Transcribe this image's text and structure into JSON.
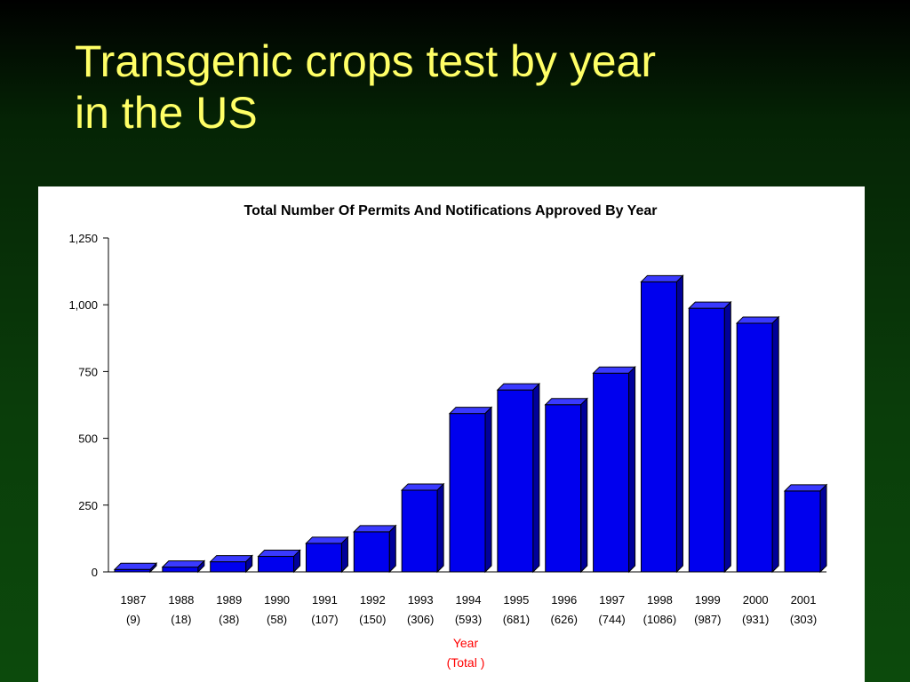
{
  "slide": {
    "title_line1": "Transgenic crops test by year",
    "title_line2": "in the US"
  },
  "colors": {
    "background": "#0a3d0a",
    "title": "#ffff66",
    "bar": "#0000ee",
    "axis_label": "#ff0000"
  },
  "chart_data": {
    "type": "bar",
    "title": "Total Number Of Permits And Notifications Approved By Year",
    "xlabel": "Year",
    "xlabel_sub": "(Total )",
    "ylabel": "",
    "ylim": [
      0,
      1250
    ],
    "yticks": [
      0,
      250,
      500,
      750,
      1000,
      1250
    ],
    "ytick_labels": [
      "0",
      "250",
      "500",
      "750",
      "1,000",
      "1,250"
    ],
    "grid": false,
    "bar_style": "3d",
    "categories": [
      "1987",
      "1988",
      "1989",
      "1990",
      "1991",
      "1992",
      "1993",
      "1994",
      "1995",
      "1996",
      "1997",
      "1998",
      "1999",
      "2000",
      "2001"
    ],
    "totals_labels": [
      "(9)",
      "(18)",
      "(38)",
      "(58)",
      "(107)",
      "(150)",
      "(306)",
      "(593)",
      "(681)",
      "(626)",
      "(744)",
      "(1086)",
      "(987)",
      "(931)",
      "(303)"
    ],
    "values": [
      9,
      18,
      38,
      58,
      107,
      150,
      306,
      593,
      681,
      626,
      744,
      1086,
      987,
      931,
      303
    ]
  }
}
